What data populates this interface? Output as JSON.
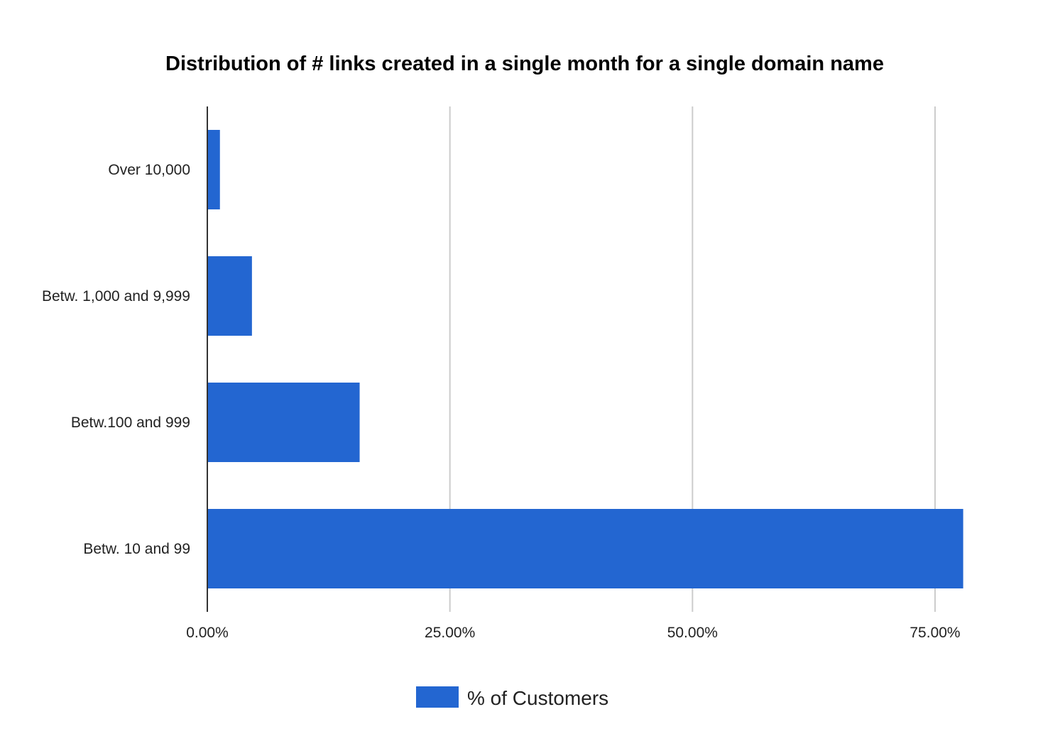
{
  "chart_data": {
    "type": "bar",
    "orientation": "horizontal",
    "title": "Distribution of # links created in a single month for a single domain name",
    "xlabel": "",
    "ylabel": "",
    "categories": [
      "Over 10,000",
      "Betw. 1,000 and 9,999",
      "Betw.100 and 999",
      "Betw. 10 and 99"
    ],
    "series": [
      {
        "name": "% of Customers",
        "values": [
          1.3,
          4.6,
          15.7,
          77.9
        ],
        "color": "#2366d1"
      }
    ],
    "xlim": [
      0,
      75
    ],
    "x_ticks": [
      0,
      25,
      50,
      75
    ],
    "x_tick_labels": [
      "0.00%",
      "25.00%",
      "50.00%",
      "75.00%"
    ],
    "grid": true,
    "legend_position": "bottom"
  }
}
